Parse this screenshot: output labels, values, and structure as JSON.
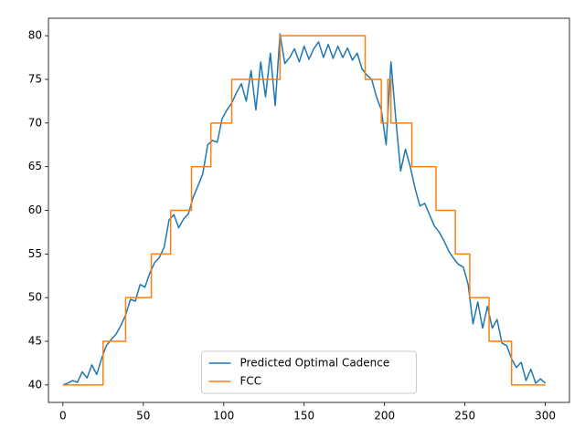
{
  "chart_data": {
    "type": "line",
    "xlim": [
      -9,
      315
    ],
    "ylim": [
      38,
      82
    ],
    "xticks": [
      0,
      50,
      100,
      150,
      200,
      250,
      300
    ],
    "yticks": [
      40,
      45,
      50,
      55,
      60,
      65,
      70,
      75,
      80
    ],
    "legend": "lower center",
    "series": [
      {
        "name": "Predicted Optimal Cadence",
        "color": "#1f77b4",
        "x": [
          0,
          3,
          6,
          9,
          12,
          15,
          18,
          21,
          24,
          27,
          30,
          33,
          36,
          39,
          42,
          45,
          48,
          51,
          54,
          57,
          60,
          63,
          66,
          69,
          72,
          75,
          78,
          81,
          84,
          87,
          90,
          93,
          96,
          99,
          102,
          105,
          108,
          111,
          114,
          117,
          120,
          123,
          126,
          129,
          132,
          135,
          138,
          141,
          144,
          147,
          150,
          153,
          156,
          159,
          162,
          165,
          168,
          171,
          174,
          177,
          180,
          183,
          186,
          189,
          192,
          195,
          198,
          201,
          204,
          207,
          210,
          213,
          216,
          219,
          222,
          225,
          228,
          231,
          234,
          237,
          240,
          243,
          246,
          249,
          252,
          255,
          258,
          261,
          264,
          267,
          270,
          273,
          276,
          279,
          282,
          285,
          288,
          291,
          294,
          297,
          300
        ],
        "values": [
          40,
          40.2,
          40.5,
          40.3,
          41.5,
          40.8,
          42.3,
          41.2,
          43,
          44.5,
          45.2,
          45.8,
          46.8,
          48,
          49.8,
          49.6,
          51.5,
          51.2,
          52.8,
          54,
          54.6,
          55.8,
          58.9,
          59.5,
          58,
          59,
          59.6,
          61.5,
          62.8,
          64.2,
          67.5,
          68,
          67.8,
          70.5,
          71.5,
          72.3,
          73.5,
          74.5,
          72.5,
          76,
          71.5,
          77,
          73,
          78,
          72,
          80.2,
          76.8,
          77.5,
          78.5,
          77,
          78.8,
          77.3,
          78.5,
          79.3,
          77.5,
          79,
          77.4,
          78.8,
          77.5,
          78.6,
          77.2,
          78,
          76.2,
          75.5,
          75,
          73,
          71.5,
          67.5,
          77,
          70.5,
          64.5,
          67,
          65,
          62.5,
          60.5,
          60.8,
          59.5,
          58.2,
          57.5,
          56.5,
          55.3,
          54.5,
          53.8,
          53.5,
          51.5,
          47,
          49.5,
          46.5,
          49,
          46.5,
          47.5,
          44.8,
          44.5,
          43,
          42,
          42.6,
          40.5,
          41.8,
          40.2,
          40.7,
          40.2
        ]
      },
      {
        "name": "FCC",
        "color": "#ff7f0e",
        "x": [
          0,
          25,
          25,
          39,
          39,
          55,
          55,
          67,
          67,
          80,
          80,
          92,
          92,
          105,
          105,
          135,
          135,
          188,
          188,
          198,
          198,
          202,
          202,
          204,
          204,
          217,
          217,
          232,
          232,
          244,
          244,
          253,
          253,
          265,
          265,
          279,
          279,
          300
        ],
        "values": [
          40,
          40,
          45,
          45,
          50,
          50,
          55,
          55,
          60,
          60,
          65,
          65,
          70,
          70,
          75,
          75,
          80,
          80,
          75,
          75,
          70,
          70,
          75,
          75,
          70,
          70,
          65,
          65,
          60,
          60,
          55,
          55,
          50,
          50,
          45,
          45,
          40,
          40
        ]
      }
    ]
  }
}
